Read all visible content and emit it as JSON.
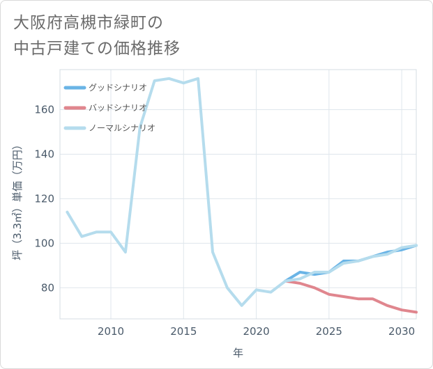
{
  "title": {
    "line1": "大阪府高槻市緑町の",
    "line2": "中古戸建ての価格推移"
  },
  "chart_data": {
    "type": "line",
    "xlabel": "年",
    "ylabel": "坪（3.3㎡）単価（万円）",
    "xlim": [
      2006.5,
      2031
    ],
    "ylim": [
      66,
      178
    ],
    "x_ticks": [
      2010,
      2015,
      2020,
      2025,
      2030
    ],
    "y_ticks": [
      80,
      100,
      120,
      140,
      160
    ],
    "grid": true,
    "legend_position": "top-left",
    "series": [
      {
        "name": "グッドシナリオ",
        "color": "#6ab4e6",
        "x": [
          2022,
          2023,
          2024,
          2025,
          2026,
          2027,
          2028,
          2029,
          2030,
          2031
        ],
        "y": [
          83,
          87,
          86,
          87,
          92,
          92,
          94,
          96,
          97,
          99
        ]
      },
      {
        "name": "バッドシナリオ",
        "color": "#e0868e",
        "x": [
          2022,
          2023,
          2024,
          2025,
          2026,
          2027,
          2028,
          2029,
          2030,
          2031
        ],
        "y": [
          83,
          82,
          80,
          77,
          76,
          75,
          75,
          72,
          70,
          69
        ]
      },
      {
        "name": "ノーマルシナリオ",
        "color": "#b5dced",
        "x": [
          2007,
          2008,
          2009,
          2010,
          2011,
          2012,
          2013,
          2014,
          2015,
          2016,
          2017,
          2018,
          2019,
          2020,
          2021,
          2022,
          2023,
          2024,
          2025,
          2026,
          2027,
          2028,
          2029,
          2030,
          2031
        ],
        "y": [
          114,
          103,
          105,
          105,
          96,
          152,
          173,
          174,
          172,
          174,
          96,
          80,
          72,
          79,
          78,
          83,
          84,
          87,
          87,
          91,
          92,
          94,
          95,
          98,
          99
        ]
      }
    ]
  }
}
